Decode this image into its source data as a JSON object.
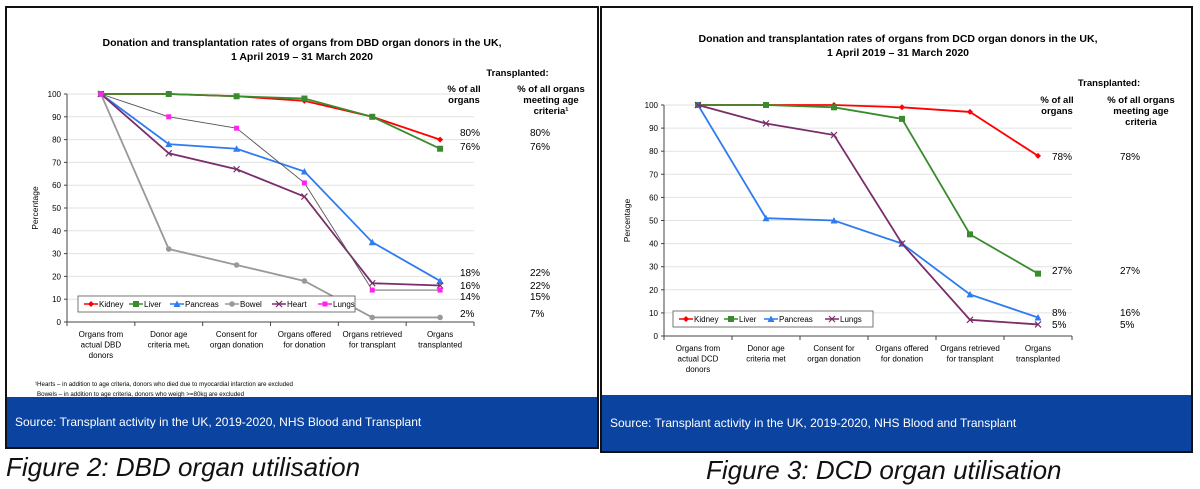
{
  "chart_data": [
    {
      "id": "dbd",
      "type": "line",
      "title": "Donation and transplantation rates of organs from DBD organ donors in the UK,",
      "subtitle": "1 April 2019 – 31 March 2020",
      "xlabel": "",
      "ylabel": "Percentage",
      "ylim": [
        0,
        100
      ],
      "yticks": [
        0,
        10,
        20,
        30,
        40,
        50,
        60,
        70,
        80,
        90,
        100
      ],
      "grid": true,
      "legend_position": "bottom-left",
      "categories": [
        [
          "Organs from",
          "actual DBD",
          "donors"
        ],
        [
          "Donor age",
          "criteria met₁"
        ],
        [
          "Consent for",
          "organ donation"
        ],
        [
          "Organs offered",
          "for donation"
        ],
        [
          "Organs retrieved",
          "for transplant"
        ],
        [
          "Organs",
          "transplanted"
        ]
      ],
      "series": [
        {
          "name": "Kidney",
          "color": "#ff0000",
          "marker": "diamond",
          "values": [
            100,
            100,
            99,
            97,
            90,
            80
          ]
        },
        {
          "name": "Liver",
          "color": "#3a8a2e",
          "marker": "square",
          "values": [
            100,
            100,
            99,
            98,
            90,
            76
          ]
        },
        {
          "name": "Pancreas",
          "color": "#2f7bf0",
          "marker": "triangle",
          "values": [
            100,
            78,
            76,
            66,
            35,
            18
          ]
        },
        {
          "name": "Bowel",
          "color": "#999999",
          "marker": "circle",
          "values": [
            100,
            32,
            25,
            18,
            2,
            2
          ]
        },
        {
          "name": "Heart",
          "color": "#7b2d6b",
          "marker": "x",
          "values": [
            100,
            74,
            67,
            55,
            17,
            16
          ]
        },
        {
          "name": "Lungs",
          "color": "#ff22ee",
          "line_color": "#555555",
          "marker": "dot",
          "values": [
            100,
            90,
            85,
            61,
            14,
            14
          ]
        }
      ],
      "transplanted_header": "Transplanted:",
      "col1_header": [
        "% of all",
        "organs"
      ],
      "col2_header": [
        "% of all organs",
        "meeting age",
        "criteria¹"
      ],
      "right_labels": [
        {
          "series": "Kidney",
          "all": "80%",
          "meeting": "80%"
        },
        {
          "series": "Liver",
          "all": "76%",
          "meeting": "76%"
        },
        {
          "series": "Pancreas",
          "all": "18%",
          "meeting": "22%"
        },
        {
          "series": "Heart",
          "all": "16%",
          "meeting": "22%"
        },
        {
          "series": "Lungs",
          "all": "14%",
          "meeting": "15%"
        },
        {
          "series": "Bowel",
          "all": "2%",
          "meeting": "7%"
        }
      ],
      "footnotes": [
        "¹Hearts – in addition to age criteria, donors who died due to myocardial infarction are excluded",
        "Bowels – in addition to age criteria, donors who weigh >=80kg are excluded"
      ],
      "source": "Source:  Transplant activity in the UK, 2019-2020, NHS Blood and Transplant",
      "caption": "Figure 2: DBD organ utilisation"
    },
    {
      "id": "dcd",
      "type": "line",
      "title": "Donation and transplantation rates of organs from DCD organ donors in the UK,",
      "subtitle": "1 April 2019 – 31 March 2020",
      "xlabel": "",
      "ylabel": "Percentage",
      "ylim": [
        0,
        100
      ],
      "yticks": [
        0,
        10,
        20,
        30,
        40,
        50,
        60,
        70,
        80,
        90,
        100
      ],
      "grid": true,
      "legend_position": "bottom-left",
      "categories": [
        [
          "Organs from",
          "actual DCD",
          "donors"
        ],
        [
          "Donor age",
          "criteria met"
        ],
        [
          "Consent for",
          "organ donation"
        ],
        [
          "Organs offered",
          "for donation"
        ],
        [
          "Organs retrieved",
          "for transplant"
        ],
        [
          "Organs",
          "transplanted"
        ]
      ],
      "series": [
        {
          "name": "Kidney",
          "color": "#ff0000",
          "marker": "diamond",
          "values": [
            100,
            100,
            100,
            99,
            97,
            78
          ]
        },
        {
          "name": "Liver",
          "color": "#3a8a2e",
          "marker": "square",
          "values": [
            100,
            100,
            99,
            94,
            44,
            27
          ]
        },
        {
          "name": "Pancreas",
          "color": "#2f7bf0",
          "marker": "triangle",
          "values": [
            100,
            51,
            50,
            40,
            18,
            8
          ]
        },
        {
          "name": "Lungs",
          "color": "#7b2d6b",
          "marker": "x",
          "values": [
            100,
            92,
            87,
            40,
            7,
            5
          ]
        }
      ],
      "transplanted_header": "Transplanted:",
      "col1_header": [
        "% of all",
        "organs"
      ],
      "col2_header": [
        "% of all organs",
        "meeting age",
        "criteria"
      ],
      "right_labels": [
        {
          "series": "Kidney",
          "all": "78%",
          "meeting": "78%"
        },
        {
          "series": "Liver",
          "all": "27%",
          "meeting": "27%"
        },
        {
          "series": "Pancreas",
          "all": "8%",
          "meeting": "16%"
        },
        {
          "series": "Lungs",
          "all": "5%",
          "meeting": "5%"
        }
      ],
      "footnotes": [],
      "source": "Source:  Transplant activity in the UK, 2019-2020, NHS Blood and Transplant",
      "caption": "Figure 3: DCD organ utilisation"
    }
  ]
}
